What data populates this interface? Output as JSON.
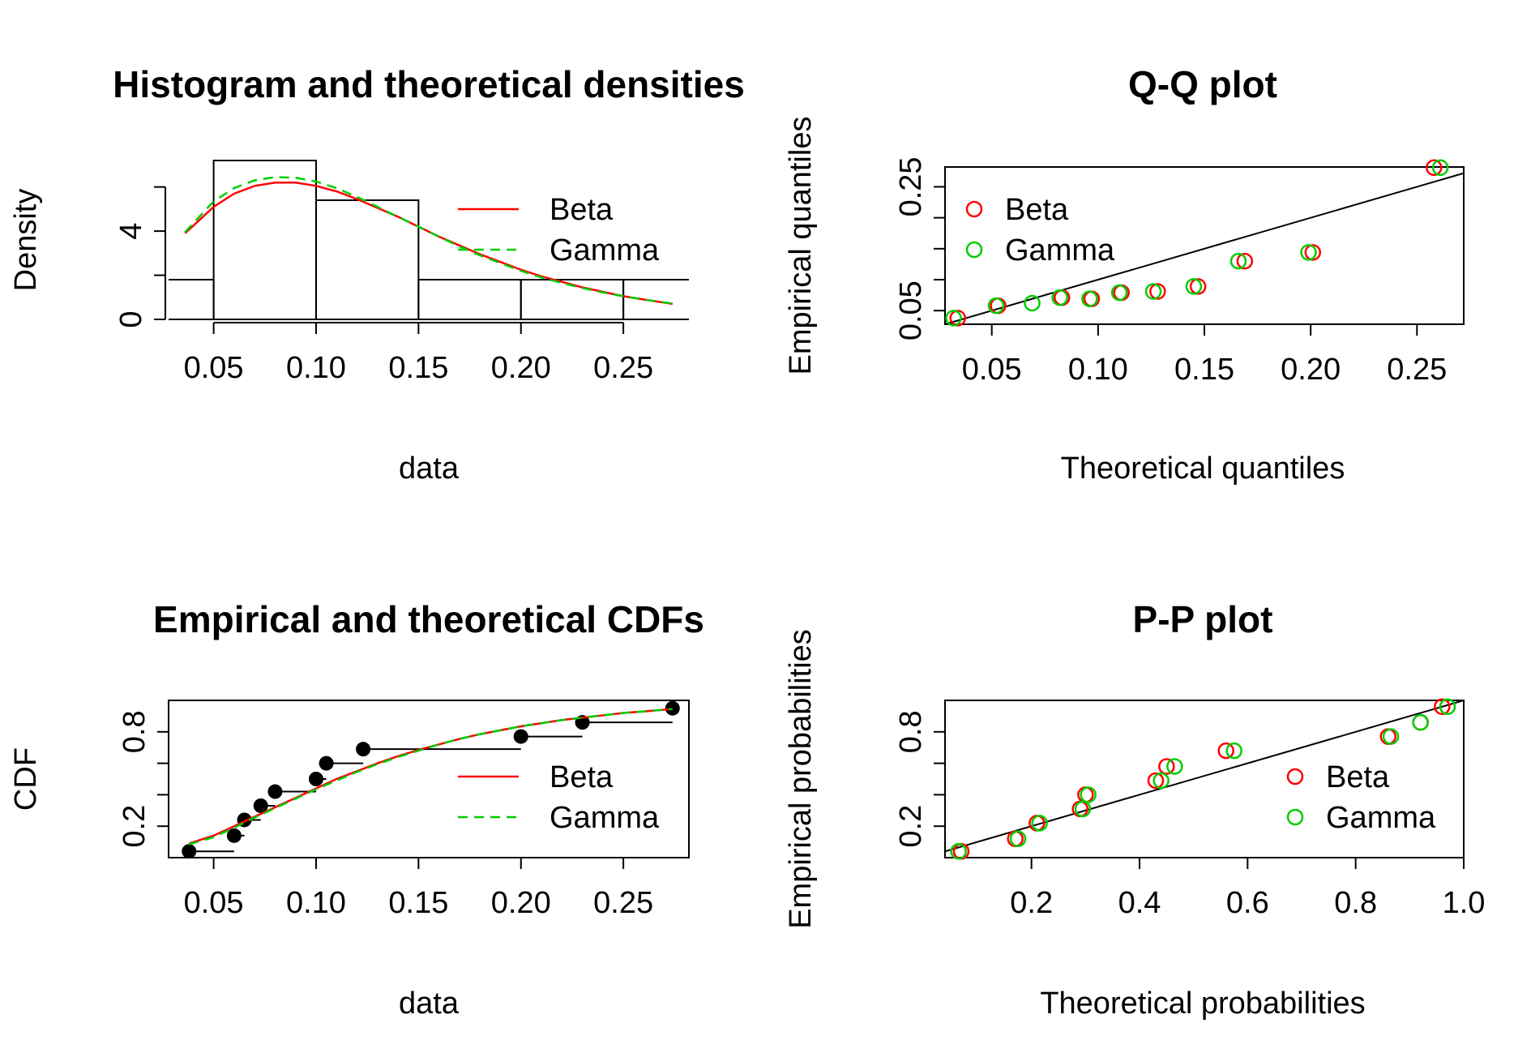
{
  "colors": {
    "beta": "#ff0000",
    "gamma": "#00cd00",
    "axis": "#000000"
  },
  "chart_data": [
    {
      "type": "histogram",
      "title": "Histogram and theoretical densities",
      "xlabel": "data",
      "ylabel": "Density",
      "xlim": [
        0.028,
        0.282
      ],
      "ylim": [
        0,
        7.2
      ],
      "xticks": [
        "0.05",
        "0.10",
        "0.15",
        "0.20",
        "0.25"
      ],
      "yticks": [
        "0",
        "4"
      ],
      "bins": [
        {
          "from": 0.0,
          "to": 0.05,
          "density": 1.8
        },
        {
          "from": 0.05,
          "to": 0.1,
          "density": 7.2
        },
        {
          "from": 0.1,
          "to": 0.15,
          "density": 5.4
        },
        {
          "from": 0.15,
          "to": 0.2,
          "density": 1.8
        },
        {
          "from": 0.2,
          "to": 0.25,
          "density": 1.8
        },
        {
          "from": 0.25,
          "to": 0.3,
          "density": 1.8
        }
      ],
      "series": [
        {
          "name": "Beta",
          "color": "red",
          "dash": "solid",
          "x": [
            0.036,
            0.05,
            0.06,
            0.07,
            0.08,
            0.09,
            0.1,
            0.11,
            0.12,
            0.13,
            0.14,
            0.15,
            0.16,
            0.17,
            0.18,
            0.19,
            0.2,
            0.21,
            0.22,
            0.23,
            0.24,
            0.25,
            0.26,
            0.274
          ],
          "y": [
            3.9,
            5.1,
            5.7,
            6.05,
            6.2,
            6.2,
            6.05,
            5.8,
            5.45,
            5.05,
            4.65,
            4.2,
            3.75,
            3.35,
            2.95,
            2.6,
            2.25,
            1.95,
            1.7,
            1.45,
            1.25,
            1.05,
            0.9,
            0.7
          ]
        },
        {
          "name": "Gamma",
          "color": "green",
          "dash": "dashed",
          "x": [
            0.036,
            0.05,
            0.06,
            0.07,
            0.08,
            0.09,
            0.1,
            0.11,
            0.12,
            0.13,
            0.14,
            0.15,
            0.16,
            0.17,
            0.18,
            0.19,
            0.2,
            0.21,
            0.22,
            0.23,
            0.24,
            0.25,
            0.26,
            0.274
          ],
          "y": [
            3.95,
            5.35,
            5.95,
            6.3,
            6.45,
            6.42,
            6.25,
            5.95,
            5.55,
            5.1,
            4.65,
            4.2,
            3.75,
            3.3,
            2.9,
            2.55,
            2.2,
            1.9,
            1.65,
            1.42,
            1.22,
            1.05,
            0.9,
            0.72
          ]
        }
      ],
      "legend": {
        "position": "top-right",
        "entries": [
          "Beta",
          "Gamma"
        ]
      }
    },
    {
      "type": "scatter",
      "title": "Q-Q plot",
      "xlabel": "Theoretical quantiles",
      "ylabel": "Empirical quantiles",
      "xlim": [
        0.028,
        0.272
      ],
      "ylim": [
        0.028,
        0.282
      ],
      "xticks": [
        "0.05",
        "0.10",
        "0.15",
        "0.20",
        "0.25"
      ],
      "yticks": [
        "0.05",
        "0.25"
      ],
      "reference_line": "y = x",
      "series": [
        {
          "name": "Beta",
          "color": "red",
          "x": [
            0.034,
            0.053,
            0.083,
            0.097,
            0.111,
            0.128,
            0.147,
            0.169,
            0.201,
            0.258
          ],
          "y": [
            0.038,
            0.058,
            0.071,
            0.069,
            0.079,
            0.081,
            0.089,
            0.13,
            0.144,
            0.281
          ]
        },
        {
          "name": "Gamma",
          "color": "green",
          "x": [
            0.032,
            0.052,
            0.069,
            0.082,
            0.096,
            0.11,
            0.126,
            0.145,
            0.166,
            0.199,
            0.261
          ],
          "y": [
            0.038,
            0.058,
            0.062,
            0.071,
            0.069,
            0.079,
            0.081,
            0.089,
            0.13,
            0.144,
            0.281
          ]
        }
      ],
      "legend": {
        "position": "top-left",
        "entries": [
          "Beta",
          "Gamma"
        ]
      }
    },
    {
      "type": "line",
      "title": "Empirical and theoretical CDFs",
      "xlabel": "data",
      "ylabel": "CDF",
      "xlim": [
        0.028,
        0.282
      ],
      "ylim": [
        0.0,
        1.0
      ],
      "xticks": [
        "0.05",
        "0.10",
        "0.15",
        "0.20",
        "0.25"
      ],
      "yticks": [
        "0.2",
        "0.8"
      ],
      "ecdf": {
        "x": [
          0.038,
          0.06,
          0.065,
          0.073,
          0.08,
          0.1,
          0.105,
          0.123,
          0.2,
          0.23,
          0.274
        ],
        "y": [
          0.04,
          0.14,
          0.24,
          0.33,
          0.42,
          0.5,
          0.6,
          0.69,
          0.77,
          0.86,
          0.95
        ]
      },
      "series": [
        {
          "name": "Beta",
          "color": "red",
          "dash": "solid",
          "x": [
            0.038,
            0.05,
            0.06,
            0.07,
            0.08,
            0.09,
            0.1,
            0.11,
            0.12,
            0.13,
            0.14,
            0.15,
            0.16,
            0.17,
            0.18,
            0.19,
            0.2,
            0.21,
            0.22,
            0.23,
            0.24,
            0.25,
            0.26,
            0.274
          ],
          "y": [
            0.09,
            0.14,
            0.2,
            0.26,
            0.32,
            0.38,
            0.44,
            0.5,
            0.55,
            0.6,
            0.645,
            0.685,
            0.72,
            0.755,
            0.785,
            0.81,
            0.835,
            0.855,
            0.875,
            0.89,
            0.905,
            0.92,
            0.93,
            0.945
          ]
        },
        {
          "name": "Gamma",
          "color": "green",
          "dash": "dashed",
          "x": [
            0.038,
            0.05,
            0.06,
            0.07,
            0.08,
            0.09,
            0.1,
            0.11,
            0.12,
            0.13,
            0.14,
            0.15,
            0.16,
            0.17,
            0.18,
            0.19,
            0.2,
            0.21,
            0.22,
            0.23,
            0.24,
            0.25,
            0.26,
            0.274
          ],
          "y": [
            0.085,
            0.13,
            0.19,
            0.255,
            0.315,
            0.375,
            0.435,
            0.49,
            0.545,
            0.595,
            0.64,
            0.68,
            0.72,
            0.755,
            0.785,
            0.81,
            0.835,
            0.855,
            0.875,
            0.89,
            0.905,
            0.92,
            0.93,
            0.945
          ]
        }
      ],
      "legend": {
        "position": "bottom-right",
        "entries": [
          "Beta",
          "Gamma"
        ]
      }
    },
    {
      "type": "scatter",
      "title": "P-P plot",
      "xlabel": "Theoretical probabilities",
      "ylabel": "Empirical probabilities",
      "xlim": [
        0.04,
        1.0
      ],
      "ylim": [
        0.0,
        1.0
      ],
      "xticks": [
        "0.2",
        "0.4",
        "0.6",
        "0.8",
        "1.0"
      ],
      "yticks": [
        "0.2",
        "0.8"
      ],
      "reference_line": "y = x",
      "series": [
        {
          "name": "Beta",
          "color": "red",
          "x": [
            0.07,
            0.17,
            0.21,
            0.29,
            0.3,
            0.43,
            0.45,
            0.56,
            0.86,
            0.92,
            0.96
          ],
          "y": [
            0.04,
            0.12,
            0.22,
            0.31,
            0.4,
            0.49,
            0.58,
            0.68,
            0.77,
            0.86,
            0.96
          ]
        },
        {
          "name": "Gamma",
          "color": "green",
          "x": [
            0.065,
            0.175,
            0.215,
            0.295,
            0.305,
            0.44,
            0.465,
            0.575,
            0.865,
            0.92,
            0.97
          ],
          "y": [
            0.04,
            0.12,
            0.22,
            0.31,
            0.4,
            0.49,
            0.58,
            0.68,
            0.77,
            0.86,
            0.96
          ]
        }
      ],
      "legend": {
        "position": "bottom-right",
        "entries": [
          "Beta",
          "Gamma"
        ]
      }
    }
  ]
}
